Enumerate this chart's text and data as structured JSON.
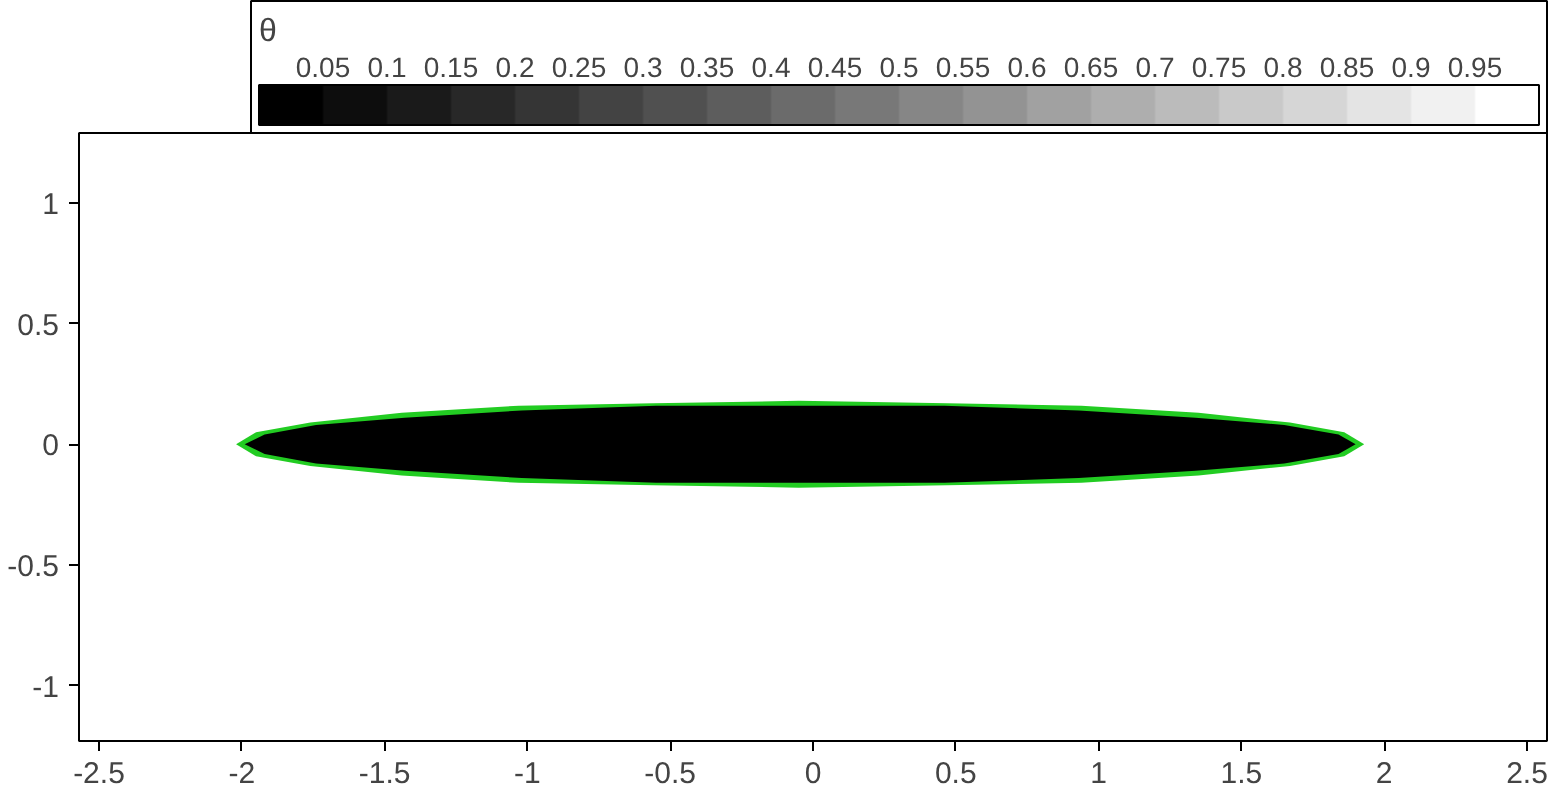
{
  "chart_data": {
    "type": "area",
    "clabel": "θ",
    "clim": [
      0,
      1
    ],
    "cticks": [
      0.05,
      0.1,
      0.15,
      0.2,
      0.25,
      0.3,
      0.35,
      0.4,
      0.45,
      0.5,
      0.55,
      0.6,
      0.65,
      0.7,
      0.75,
      0.8,
      0.85,
      0.9,
      0.95
    ],
    "series": [
      {
        "color": "#22cc22",
        "x": [
          -2.02,
          -1.95,
          -1.76,
          -1.44,
          -1.03,
          -0.56,
          -0.05,
          0.47,
          0.94,
          1.35,
          1.67,
          1.86,
          1.93,
          1.86,
          1.67,
          1.35,
          0.94,
          0.47,
          -0.05,
          -0.56,
          -1.03,
          -1.44,
          -1.76,
          -1.95,
          -2.02
        ],
        "values": [
          0,
          0.05,
          0.09,
          0.13,
          0.16,
          0.17,
          0.18,
          0.17,
          0.16,
          0.13,
          0.09,
          0.05,
          0,
          -0.05,
          -0.09,
          -0.13,
          -0.16,
          -0.17,
          -0.18,
          -0.17,
          -0.16,
          -0.13,
          -0.09,
          -0.05,
          0
        ]
      },
      {
        "color": "#000000",
        "x": [
          -1.99,
          -1.92,
          -1.74,
          -1.43,
          -1.02,
          -0.55,
          -0.05,
          0.46,
          0.93,
          1.34,
          1.65,
          1.84,
          1.9,
          1.84,
          1.65,
          1.34,
          0.93,
          0.46,
          -0.05,
          -0.55,
          -1.02,
          -1.43,
          -1.74,
          -1.92,
          -1.99
        ],
        "values": [
          0,
          0.04,
          0.08,
          0.11,
          0.14,
          0.16,
          0.16,
          0.16,
          0.14,
          0.11,
          0.08,
          0.04,
          0,
          -0.04,
          -0.08,
          -0.11,
          -0.14,
          -0.16,
          -0.16,
          -0.16,
          -0.14,
          -0.11,
          -0.08,
          -0.04,
          0
        ]
      }
    ],
    "xlim": [
      -2.57,
      2.57
    ],
    "ylim": [
      -1.23,
      1.29
    ],
    "xticks": [
      -2.5,
      -2,
      -1.5,
      -1,
      -0.5,
      0,
      0.5,
      1,
      1.5,
      2,
      2.5
    ],
    "yticks": [
      -1,
      -0.5,
      0,
      0.5,
      1
    ],
    "grid": false
  }
}
